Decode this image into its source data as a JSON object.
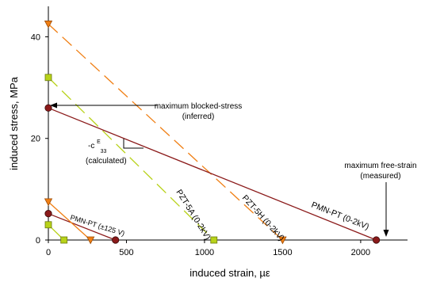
{
  "chart_data": {
    "type": "line",
    "xlabel": "induced strain, µε",
    "ylabel": "induced stress, MPa",
    "xlim": [
      0,
      2300
    ],
    "ylim": [
      0,
      46
    ],
    "x_ticks": [
      0,
      500,
      1000,
      1500,
      2000
    ],
    "y_ticks": [
      0,
      20,
      40
    ],
    "series": [
      {
        "name": "PZT-5H (0-2kV)",
        "color": "#f07f14",
        "dash": "long",
        "marker": "triangle-down",
        "points": [
          [
            0,
            42.5
          ],
          [
            1500,
            0
          ]
        ]
      },
      {
        "name": "PZT-5A (0-2kV)",
        "color": "#b8d219",
        "dash": "long",
        "marker": "square",
        "points": [
          [
            0,
            32
          ],
          [
            1060,
            0
          ]
        ]
      },
      {
        "name": "PMN-PT (0-2kV)",
        "color": "#8b1a1a",
        "dash": "solid",
        "marker": "circle",
        "points": [
          [
            0,
            26
          ],
          [
            2100,
            0
          ]
        ]
      },
      {
        "name": "PMN-PT (±125 V)",
        "color": "#8b1a1a",
        "dash": "solid",
        "marker": "circle",
        "points": [
          [
            0,
            5.2
          ],
          [
            430,
            0
          ]
        ]
      },
      {
        "name": "",
        "color": "#f07f14",
        "dash": "solid",
        "marker": "triangle-down",
        "points": [
          [
            0,
            7.5
          ],
          [
            270,
            0
          ]
        ]
      },
      {
        "name": "",
        "color": "#b8d219",
        "dash": "solid",
        "marker": "square",
        "points": [
          [
            0,
            3
          ],
          [
            100,
            0
          ]
        ]
      }
    ],
    "annotations": {
      "blocked_1": "maximum blocked-stress",
      "blocked_2": "(inferred)",
      "free_1": "maximum free-strain",
      "free_2": "(measured)",
      "slope_main": "-c",
      "slope_sup": "E",
      "slope_sub": "33",
      "slope_note": "(calculated)"
    }
  }
}
